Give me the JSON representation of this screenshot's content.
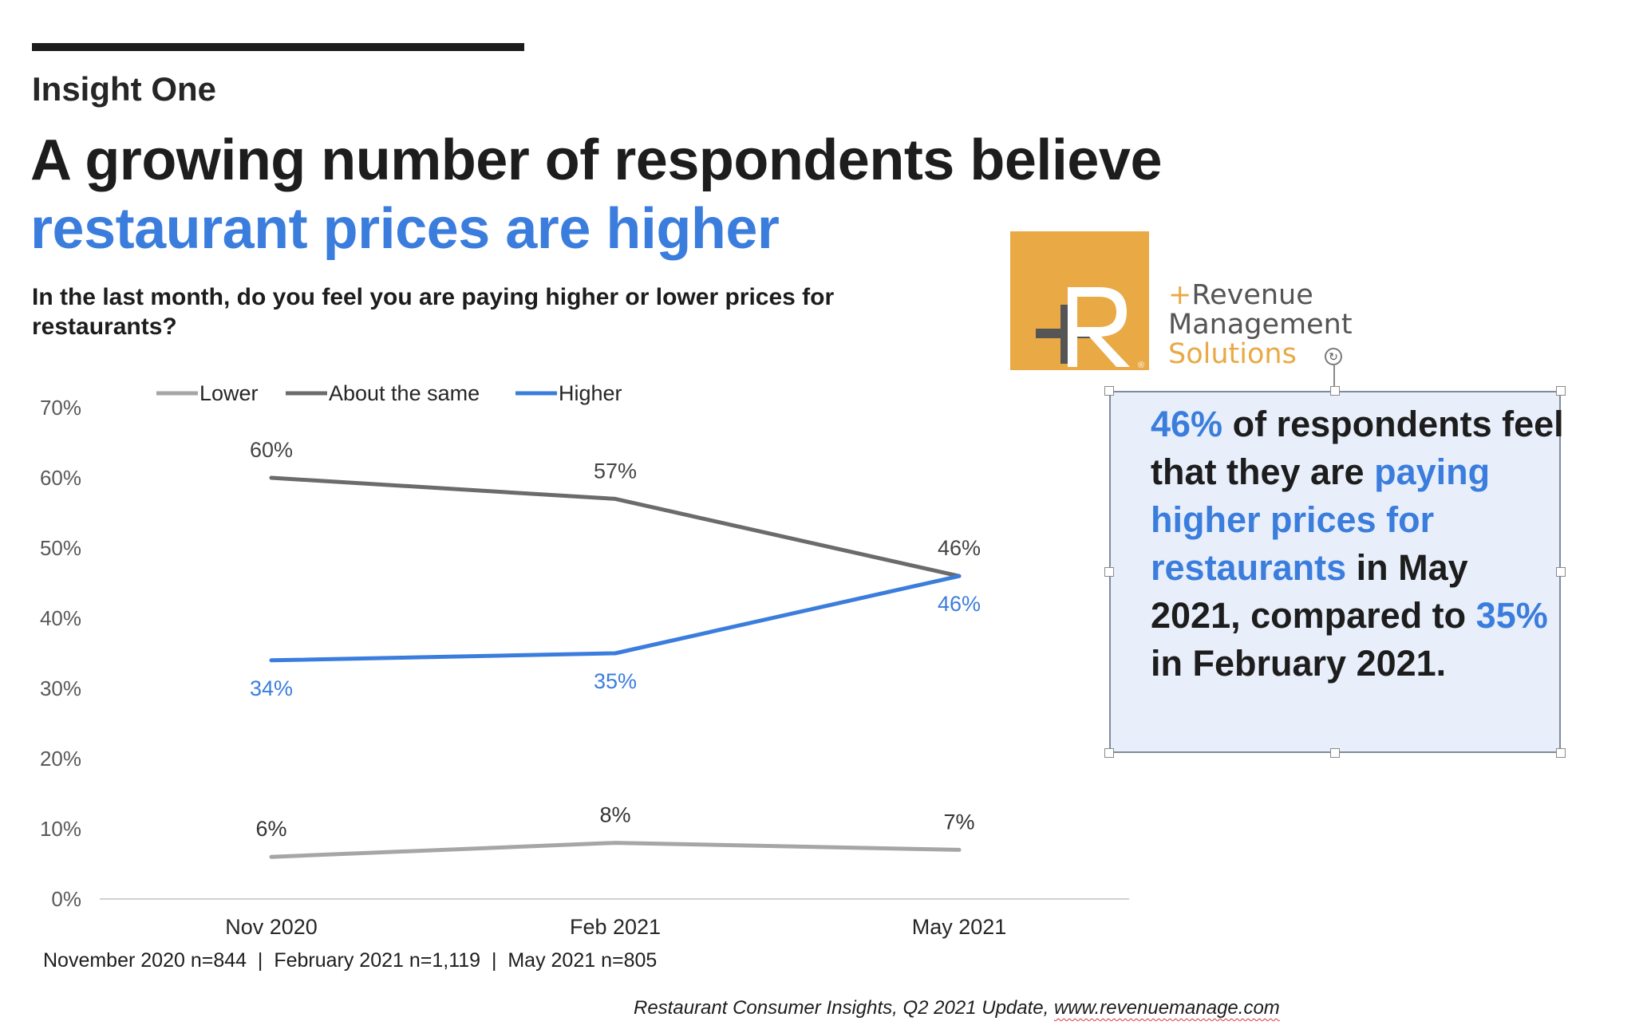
{
  "header": {
    "kicker": "Insight One",
    "headline_line1": "A growing number of respondents believe",
    "headline_line2": "restaurant prices are higher",
    "question": "In the last month, do you feel you are paying higher or lower prices for restaurants?"
  },
  "colors": {
    "lower": "#a6a6a6",
    "about_the_same": "#6b6b6b",
    "higher": "#3b7ddd",
    "accent": "#3b7ddd",
    "logo_gold": "#e9a945"
  },
  "chart_data": {
    "type": "line",
    "title": "",
    "xlabel": "",
    "ylabel": "",
    "categories": [
      "Nov 2020",
      "Feb 2021",
      "May 2021"
    ],
    "ylim": [
      0,
      70
    ],
    "yticks": [
      "0%",
      "10%",
      "20%",
      "30%",
      "40%",
      "50%",
      "60%",
      "70%"
    ],
    "grid": false,
    "legend_position": "top",
    "series": [
      {
        "name": "Lower",
        "values": [
          6,
          8,
          7
        ],
        "labels": [
          "6%",
          "8%",
          "7%"
        ]
      },
      {
        "name": "About the same",
        "values": [
          60,
          57,
          46
        ],
        "labels": [
          "60%",
          "57%",
          "46%"
        ]
      },
      {
        "name": "Higher",
        "values": [
          34,
          35,
          46
        ],
        "labels": [
          "34%",
          "35%",
          "46%"
        ]
      }
    ]
  },
  "logo": {
    "line1": "Revenue",
    "line2": "Management",
    "line3": "Solutions",
    "registered": "®"
  },
  "callout": {
    "part1": "46%",
    "part2": " of respondents feel that they are ",
    "part3": "paying higher prices for restaurants",
    "part4": " in May 2021, compared to ",
    "part5": "35%",
    "part6": " in February 2021."
  },
  "footer": {
    "sample_sizes": "November 2020 n=844  |  February 2021 n=1,119  |  May 2021 n=805",
    "source_prefix": "Restaurant Consumer Insights, Q2 2021 Update, ",
    "source_url": "www.revenuemanage.com"
  }
}
